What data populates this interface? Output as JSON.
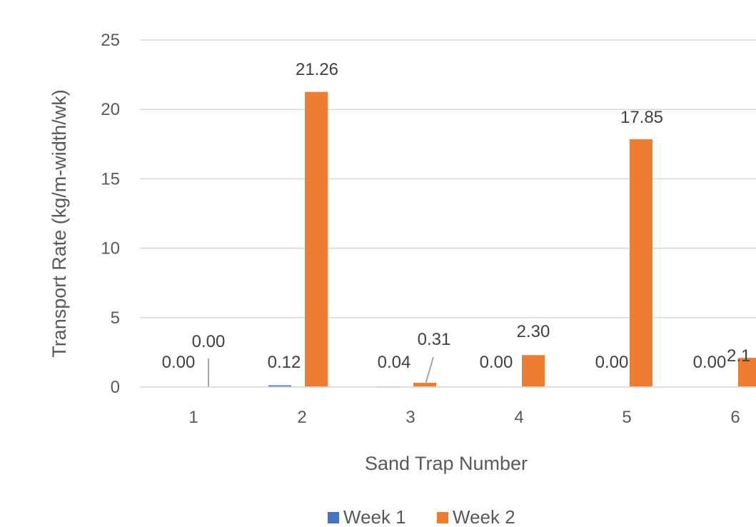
{
  "chart_data": {
    "type": "bar",
    "categories": [
      "1",
      "2",
      "3",
      "4",
      "5",
      "6"
    ],
    "series": [
      {
        "name": "Week 1",
        "values": [
          0.0,
          0.12,
          0.04,
          0.0,
          0.0,
          0.0
        ],
        "labels": [
          "0.00",
          "0.12",
          "0.04",
          "0.00",
          "0.00",
          "0.00"
        ],
        "color": "#4472C4"
      },
      {
        "name": "Week 2",
        "values": [
          0.0,
          21.26,
          0.31,
          2.3,
          17.85,
          2.1
        ],
        "labels": [
          "0.00",
          "21.26",
          "0.31",
          "2.30",
          "17.85",
          "2.1"
        ],
        "color": "#ED7D31"
      }
    ],
    "title": "",
    "xlabel": "Sand Trap Number",
    "ylabel": "Transport Rate (kg/m-width/wk)",
    "ylim": [
      0,
      25
    ],
    "yticks": [
      0,
      5,
      10,
      15,
      20,
      25
    ],
    "grid": true,
    "legend_position": "bottom",
    "leader_lines": true
  }
}
